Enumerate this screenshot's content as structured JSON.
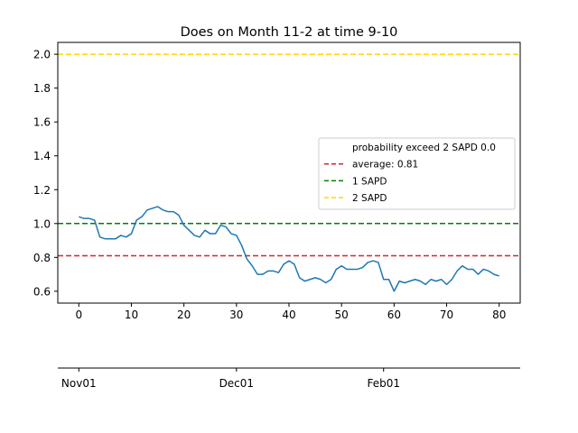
{
  "chart_data": {
    "type": "line",
    "title": "Does on Month 11-2 at time 9-10",
    "xlabel": "",
    "ylabel": "",
    "xlim": [
      -4,
      84
    ],
    "ylim": [
      0.53,
      2.07
    ],
    "xticks": [
      0,
      10,
      20,
      30,
      40,
      50,
      60,
      70,
      80
    ],
    "yticks": [
      0.6,
      0.8,
      1.0,
      1.2,
      1.4,
      1.6,
      1.8,
      2.0
    ],
    "xtick_labels": [
      "0",
      "10",
      "20",
      "30",
      "40",
      "50",
      "60",
      "70",
      "80"
    ],
    "ytick_labels": [
      "0.6",
      "0.8",
      "1.0",
      "1.2",
      "1.4",
      "1.6",
      "1.8",
      "2.0"
    ],
    "grid": false,
    "legend_position": "center-right",
    "series": [
      {
        "color": "#1f77b4",
        "x": [
          0,
          1,
          2,
          3,
          4,
          5,
          6,
          7,
          8,
          9,
          10,
          11,
          12,
          13,
          14,
          15,
          16,
          17,
          18,
          19,
          20,
          21,
          22,
          23,
          24,
          25,
          26,
          27,
          28,
          29,
          30,
          31,
          32,
          33,
          34,
          35,
          36,
          37,
          38,
          39,
          40,
          41,
          42,
          43,
          44,
          45,
          46,
          47,
          48,
          49,
          50,
          51,
          52,
          53,
          54,
          55,
          56,
          57,
          58,
          59,
          60,
          61,
          62,
          63,
          64,
          65,
          66,
          67,
          68,
          69,
          70,
          71,
          72,
          73,
          74,
          75,
          76,
          77,
          78,
          79,
          80
        ],
        "values": [
          1.04,
          1.03,
          1.03,
          1.02,
          0.92,
          0.91,
          0.91,
          0.91,
          0.93,
          0.92,
          0.94,
          1.02,
          1.04,
          1.08,
          1.09,
          1.1,
          1.08,
          1.07,
          1.07,
          1.05,
          0.99,
          0.96,
          0.93,
          0.92,
          0.96,
          0.94,
          0.94,
          0.99,
          0.98,
          0.94,
          0.93,
          0.87,
          0.79,
          0.75,
          0.7,
          0.7,
          0.72,
          0.72,
          0.71,
          0.76,
          0.78,
          0.76,
          0.68,
          0.66,
          0.67,
          0.68,
          0.67,
          0.65,
          0.67,
          0.73,
          0.75,
          0.73,
          0.73,
          0.73,
          0.74,
          0.77,
          0.78,
          0.77,
          0.67,
          0.67,
          0.6,
          0.66,
          0.65,
          0.66,
          0.67,
          0.66,
          0.64,
          0.67,
          0.66,
          0.67,
          0.64,
          0.67,
          0.72,
          0.75,
          0.73,
          0.73,
          0.7,
          0.73,
          0.72,
          0.7,
          0.69
        ]
      }
    ],
    "reference_lines": [
      {
        "label": "average: 0.81",
        "y": 0.81,
        "color": "#d62728",
        "style": "dashed"
      },
      {
        "label": "1 SAPD",
        "y": 1.0,
        "color": "#008000",
        "style": "dashed"
      },
      {
        "label": "2 SAPD",
        "y": 2.0,
        "color": "#ffd700",
        "style": "dashed"
      }
    ],
    "legend_entries": [
      {
        "label": "probability exceed 2 SAPD 0.0",
        "marker": "none"
      },
      {
        "label": "average: 0.81",
        "color": "#d62728",
        "style": "dashed"
      },
      {
        "label": "1 SAPD",
        "color": "#008000",
        "style": "dashed"
      },
      {
        "label": "2 SAPD",
        "color": "#ffd700",
        "style": "dashed"
      }
    ],
    "secondary_axis": {
      "tick_labels": [
        "Nov01",
        "Dec01",
        "Feb01"
      ],
      "tick_x": [
        0,
        30,
        58
      ]
    }
  }
}
